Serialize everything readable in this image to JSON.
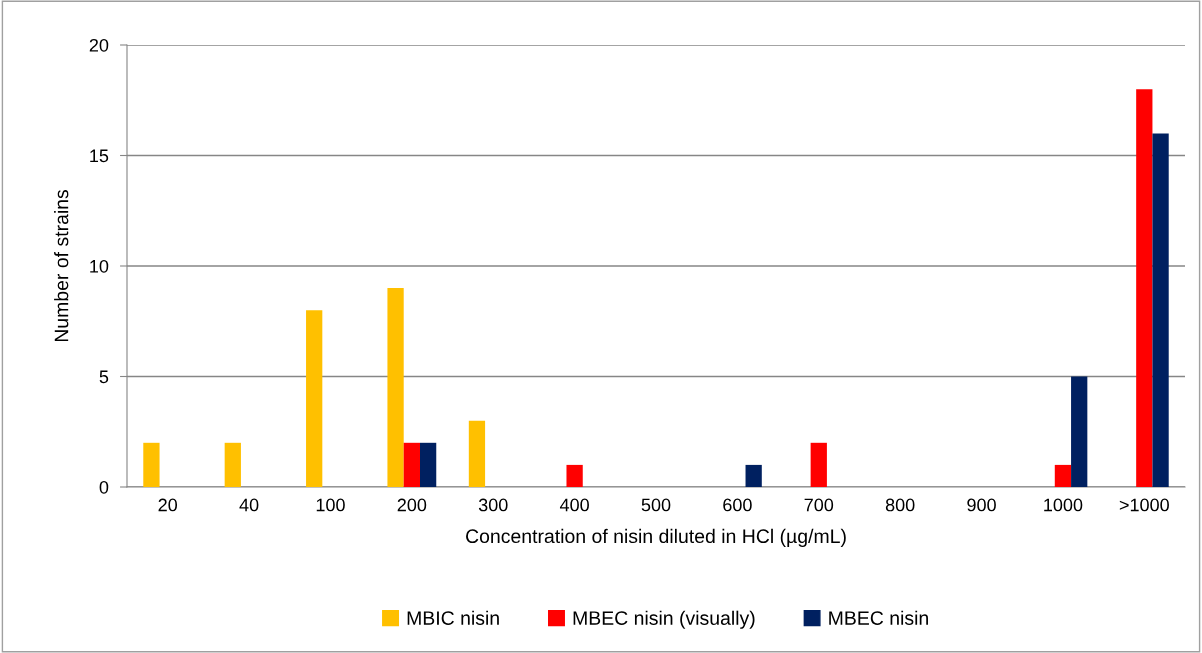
{
  "chart_data": {
    "type": "bar",
    "xlabel": "Concentration of nisin diluted in HCl (µg/mL)",
    "ylabel": "Number of strains",
    "categories": [
      "20",
      "40",
      "100",
      "200",
      "300",
      "400",
      "500",
      "600",
      "700",
      "800",
      "900",
      "1000",
      ">1000"
    ],
    "series": [
      {
        "name": "MBIC nisin",
        "color": "#ffc000",
        "values": [
          2,
          2,
          8,
          9,
          3,
          0,
          0,
          0,
          0,
          0,
          0,
          0,
          0
        ]
      },
      {
        "name": "MBEC nisin (visually)",
        "color": "#ff0000",
        "values": [
          0,
          0,
          0,
          2,
          0,
          1,
          0,
          0,
          2,
          0,
          0,
          1,
          18
        ]
      },
      {
        "name": "MBEC nisin",
        "color": "#002060",
        "values": [
          0,
          0,
          0,
          2,
          0,
          0,
          0,
          1,
          0,
          0,
          0,
          5,
          16
        ]
      }
    ],
    "ylim": [
      0,
      20
    ],
    "yticks": [
      0,
      5,
      10,
      15,
      20
    ],
    "grid": "y",
    "legend": "bottom"
  }
}
